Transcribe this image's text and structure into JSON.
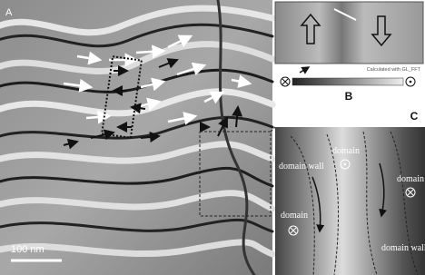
{
  "panels": [
    {
      "label": "A",
      "scale_bar": "100 nm"
    },
    {
      "label": "B",
      "caption": "Calculated with GL_FFT"
    },
    {
      "label": "C",
      "annotations": [
        "domain wall",
        "domain",
        "domain",
        "domain",
        "domain wall"
      ]
    }
  ]
}
